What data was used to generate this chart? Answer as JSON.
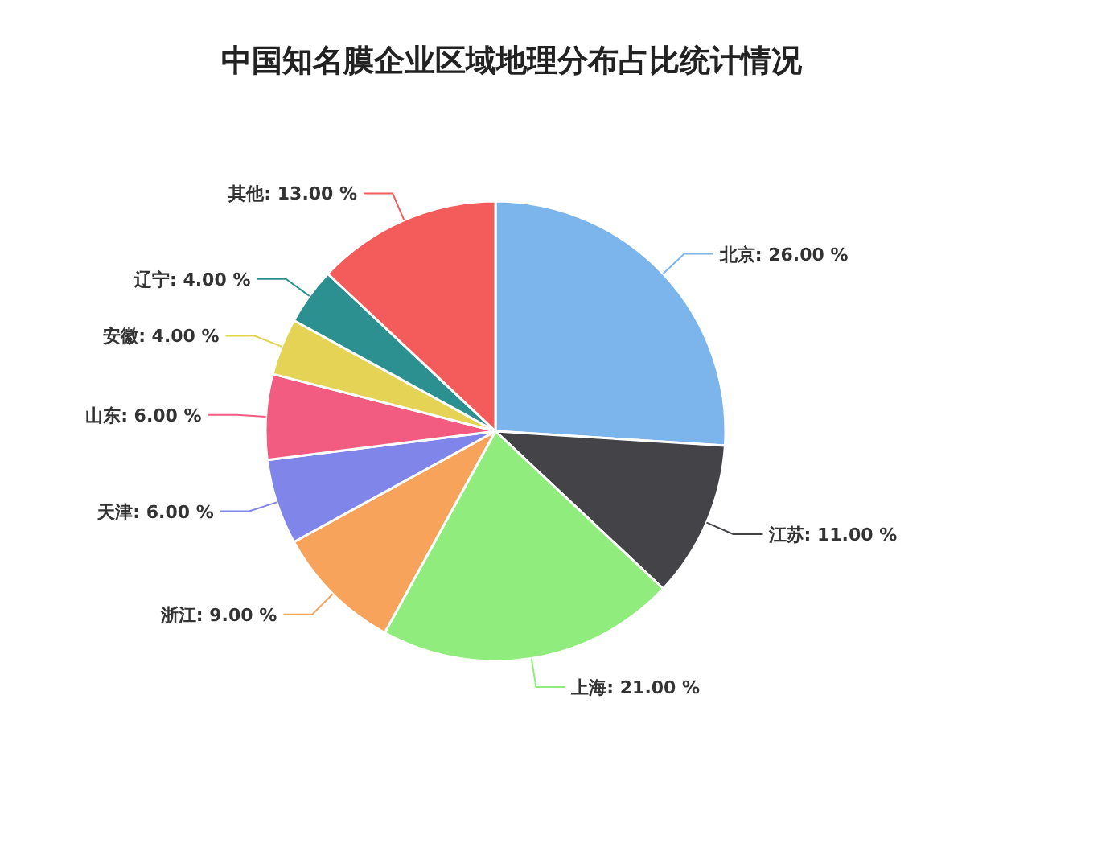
{
  "chart_data": {
    "type": "pie",
    "title": "中国知名膜企业区域地理分布占比统计情况",
    "categories": [
      "北京",
      "江苏",
      "上海",
      "浙江",
      "天津",
      "山东",
      "安徽",
      "辽宁",
      "其他"
    ],
    "values": [
      26,
      11,
      21,
      9,
      6,
      6,
      4,
      4,
      13
    ],
    "value_labels": [
      "26.00 %",
      "11.00 %",
      "21.00 %",
      "9.00 %",
      "6.00 %",
      "6.00 %",
      "4.00 %",
      "4.00 %",
      "13.00 %"
    ],
    "colors": [
      "#7cb5ec",
      "#434348",
      "#90ed7d",
      "#f7a35c",
      "#8085e9",
      "#f15c80",
      "#e4d354",
      "#2b908f",
      "#f45b5b"
    ]
  }
}
